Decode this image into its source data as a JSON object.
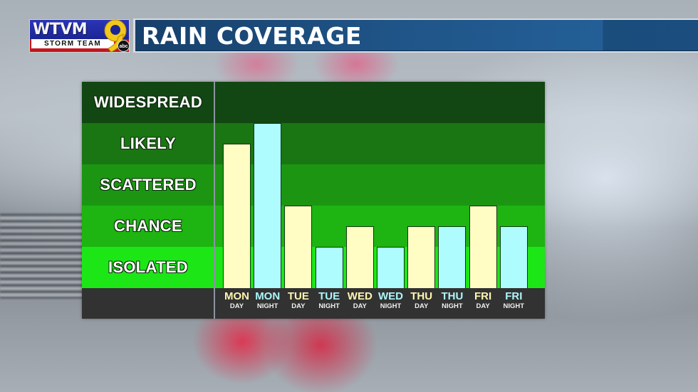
{
  "header": {
    "logo": {
      "call_letters": "WTVM",
      "channel_number": "9",
      "subtitle": "STORM TEAM",
      "network": "abc"
    },
    "title": "RAIN COVERAGE",
    "colors": {
      "title_bar": "#1f5487",
      "logo_blue": "#1b2694",
      "logo_red": "#c4161c",
      "nine_gold": "#f2c81a"
    }
  },
  "chart_data": {
    "type": "bar",
    "title": "RAIN COVERAGE",
    "xlabel": "",
    "ylabel": "",
    "levels": [
      "ISOLATED",
      "CHANCE",
      "SCATTERED",
      "LIKELY",
      "WIDESPREAD"
    ],
    "ylim": [
      0,
      5
    ],
    "grid": false,
    "legend": null,
    "categories": [
      "MON DAY",
      "MON NIGHT",
      "TUE DAY",
      "TUE NIGHT",
      "WED DAY",
      "WED NIGHT",
      "THU DAY",
      "THU NIGHT",
      "FRI DAY",
      "FRI NIGHT"
    ],
    "values": [
      3.5,
      4.0,
      2.0,
      1.0,
      1.5,
      1.0,
      1.5,
      1.5,
      2.0,
      1.5
    ],
    "value_descriptions": [
      "Scattered-Likely",
      "Likely",
      "Chance",
      "Isolated",
      "Isolated-Chance",
      "Isolated",
      "Isolated-Chance",
      "Isolated-Chance",
      "Chance",
      "Isolated-Chance"
    ],
    "series_colors": {
      "day": "#fffcc4",
      "night": "#aefcfd"
    },
    "band_colors": {
      "WIDESPREAD": "#124612",
      "LIKELY": "#1a7612",
      "SCATTERED": "#1c9612",
      "CHANCE": "#1eb412",
      "ISOLATED": "#1de616"
    }
  },
  "bands": [
    {
      "label": "WIDESPREAD",
      "color": "#124612"
    },
    {
      "label": "LIKELY",
      "color": "#1a7612"
    },
    {
      "label": "SCATTERED",
      "color": "#1c9612"
    },
    {
      "label": "CHANCE",
      "color": "#1eb412"
    },
    {
      "label": "ISOLATED",
      "color": "#1de616"
    }
  ],
  "periods": [
    {
      "day": "MON",
      "part": "DAY",
      "kind": "day"
    },
    {
      "day": "MON",
      "part": "NIGHT",
      "kind": "night"
    },
    {
      "day": "TUE",
      "part": "DAY",
      "kind": "day"
    },
    {
      "day": "TUE",
      "part": "NIGHT",
      "kind": "night"
    },
    {
      "day": "WED",
      "part": "DAY",
      "kind": "day"
    },
    {
      "day": "WED",
      "part": "NIGHT",
      "kind": "night"
    },
    {
      "day": "THU",
      "part": "DAY",
      "kind": "day"
    },
    {
      "day": "THU",
      "part": "NIGHT",
      "kind": "night"
    },
    {
      "day": "FRI",
      "part": "DAY",
      "kind": "day"
    },
    {
      "day": "FRI",
      "part": "NIGHT",
      "kind": "night"
    }
  ]
}
